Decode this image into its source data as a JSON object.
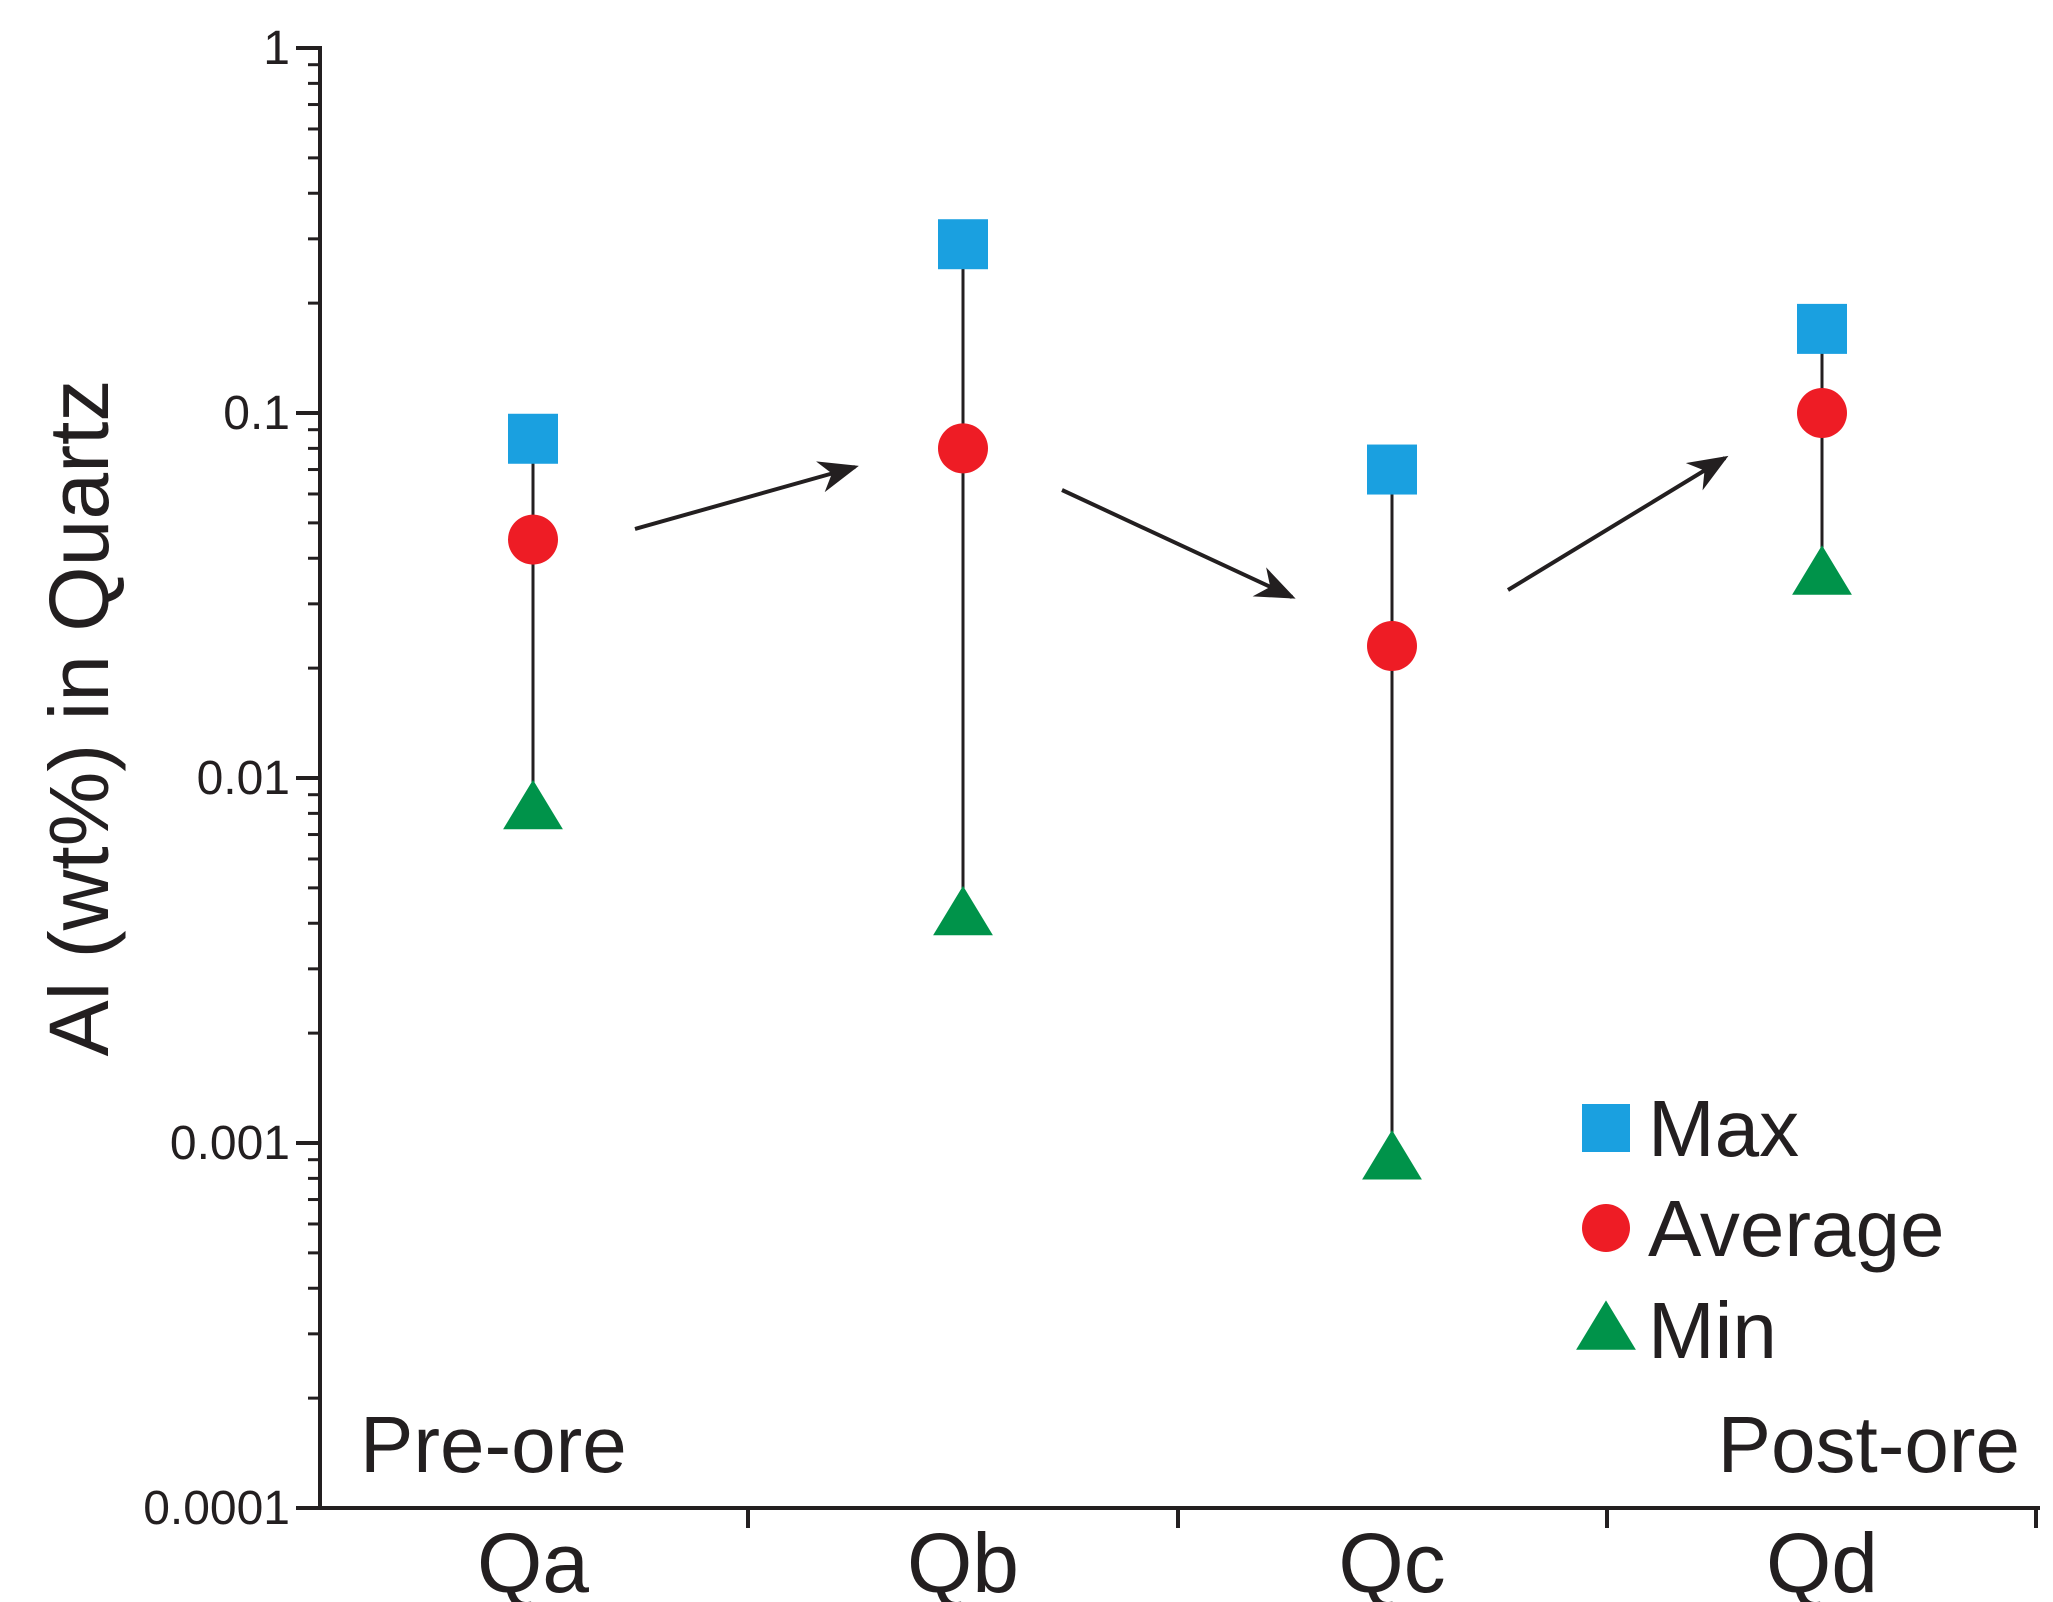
{
  "chart_data": {
    "type": "scatter",
    "title": "",
    "xlabel": "",
    "ylabel": "Al (wt%) in Quartz",
    "yscale": "log",
    "ylim": [
      0.0001,
      1
    ],
    "yticks": [
      {
        "value": 1,
        "label": "1"
      },
      {
        "value": 0.1,
        "label": "0.1"
      },
      {
        "value": 0.01,
        "label": "0.01"
      },
      {
        "value": 0.001,
        "label": "0.001"
      },
      {
        "value": 0.0001,
        "label": "0.0001"
      }
    ],
    "categories": [
      "Qa",
      "Qb",
      "Qc",
      "Qd"
    ],
    "series": [
      {
        "name": "Max",
        "marker": "square",
        "color": "#1aa0e0",
        "values": [
          0.085,
          0.29,
          0.07,
          0.17
        ]
      },
      {
        "name": "Average",
        "marker": "circle",
        "color": "#ee1c25",
        "values": [
          0.045,
          0.08,
          0.023,
          0.1
        ]
      },
      {
        "name": "Min",
        "marker": "triangle",
        "color": "#00934a",
        "values": [
          0.0082,
          0.0042,
          0.0009,
          0.036
        ]
      }
    ],
    "annotations": {
      "left": "Pre-ore",
      "right": "Post-ore"
    },
    "trend_arrows": [
      {
        "from": "Qa",
        "to": "Qb",
        "direction": "up"
      },
      {
        "from": "Qb",
        "to": "Qc",
        "direction": "down"
      },
      {
        "from": "Qc",
        "to": "Qd",
        "direction": "up"
      }
    ],
    "legend": {
      "position": "bottom-right",
      "entries": [
        "Max",
        "Average",
        "Min"
      ]
    },
    "grid": false
  }
}
